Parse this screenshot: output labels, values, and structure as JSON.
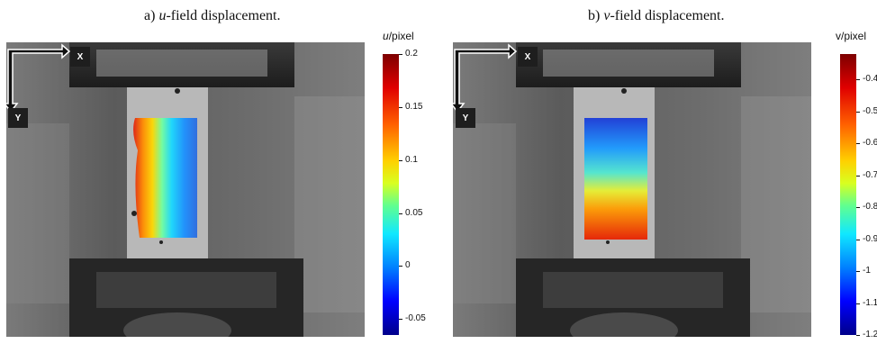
{
  "panel_a": {
    "caption_prefix": "a) ",
    "caption_var": "u",
    "caption_rest": "-field displacement.",
    "colorbar": {
      "title_var": "u",
      "title_unit": "/pixel",
      "ticks": [
        "0.2",
        "0.15",
        "0.1",
        "0.05",
        "0",
        "-0.05"
      ],
      "max": 0.2,
      "min": -0.065
    },
    "axis_x": "X",
    "axis_y": "Y"
  },
  "panel_b": {
    "caption_prefix": "b) ",
    "caption_var": "v",
    "caption_rest": "-field displacement.",
    "colorbar": {
      "title": "v/pixel",
      "ticks": [
        "-0.4",
        "-0.5",
        "-0.6",
        "-0.7",
        "-0.8",
        "-0.9",
        "-1",
        "-1.1",
        "-1.2"
      ],
      "max": -0.32,
      "min": -1.2
    },
    "axis_x": "X",
    "axis_y": "Y"
  }
}
